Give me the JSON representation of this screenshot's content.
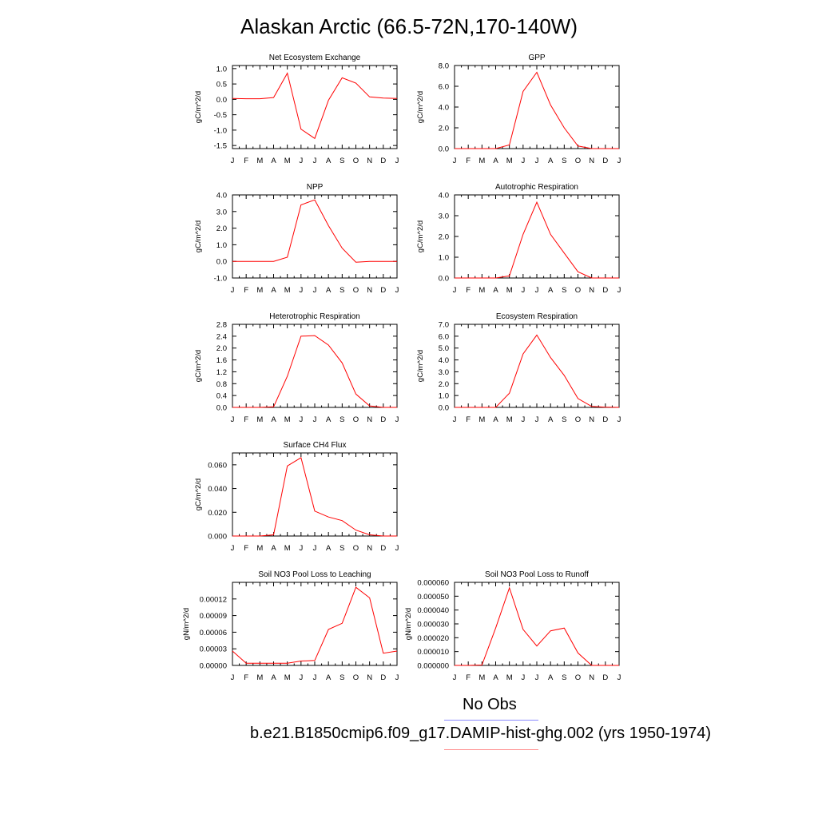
{
  "title": "Alaskan Arctic (66.5-72N,170-140W)",
  "legend": {
    "items": [
      {
        "label": "No Obs",
        "color": "#8a8aff"
      },
      {
        "label": "b.e21.B1850cmip6.f09_g17.DAMIP-hist-ghg.002 (yrs 1950-1974)",
        "color": "#ff8a8a"
      }
    ]
  },
  "chart_data": [
    {
      "type": "line",
      "title": "Net Ecosystem Exchange",
      "xlabel": "",
      "ylabel": "gC/m^2/d",
      "categories": [
        "J",
        "F",
        "M",
        "A",
        "M",
        "J",
        "J",
        "A",
        "S",
        "O",
        "N",
        "D",
        "J"
      ],
      "ylim": [
        -1.6,
        1.1
      ],
      "yticks": [
        "1.0",
        "0.5",
        "0.0",
        "-0.5",
        "-1.0",
        "-1.5"
      ],
      "ytick_values": [
        1.0,
        0.5,
        0.0,
        -0.5,
        -1.0,
        -1.5
      ],
      "series": [
        {
          "color": "#ff0000",
          "values": [
            0.03,
            0.02,
            0.02,
            0.06,
            0.85,
            -0.97,
            -1.27,
            -0.03,
            0.7,
            0.53,
            0.08,
            0.04,
            0.03
          ]
        }
      ]
    },
    {
      "type": "line",
      "title": "GPP",
      "xlabel": "",
      "ylabel": "gC/m^2/d",
      "categories": [
        "J",
        "F",
        "M",
        "A",
        "M",
        "J",
        "J",
        "A",
        "S",
        "O",
        "N",
        "D",
        "J"
      ],
      "ylim": [
        0,
        8
      ],
      "yticks": [
        "8.0",
        "6.0",
        "4.0",
        "2.0",
        "0.0"
      ],
      "ytick_values": [
        8,
        6,
        4,
        2,
        0
      ],
      "series": [
        {
          "color": "#ff0000",
          "values": [
            0,
            0,
            0,
            0,
            0.35,
            5.5,
            7.35,
            4.2,
            2.0,
            0.25,
            0,
            0,
            0
          ]
        }
      ]
    },
    {
      "type": "line",
      "title": "NPP",
      "xlabel": "",
      "ylabel": "gC/m^2/d",
      "categories": [
        "J",
        "F",
        "M",
        "A",
        "M",
        "J",
        "J",
        "A",
        "S",
        "O",
        "N",
        "D",
        "J"
      ],
      "ylim": [
        -1,
        4
      ],
      "yticks": [
        "4.0",
        "3.0",
        "2.0",
        "1.0",
        "0.0",
        "-1.0"
      ],
      "ytick_values": [
        4,
        3,
        2,
        1,
        0,
        -1
      ],
      "series": [
        {
          "color": "#ff0000",
          "values": [
            0,
            0,
            0,
            0,
            0.25,
            3.4,
            3.7,
            2.15,
            0.8,
            -0.05,
            0,
            0,
            0
          ]
        }
      ]
    },
    {
      "type": "line",
      "title": "Autotrophic Respiration",
      "xlabel": "",
      "ylabel": "gC/m^2/d",
      "categories": [
        "J",
        "F",
        "M",
        "A",
        "M",
        "J",
        "J",
        "A",
        "S",
        "O",
        "N",
        "D",
        "J"
      ],
      "ylim": [
        0,
        4
      ],
      "yticks": [
        "4.0",
        "3.0",
        "2.0",
        "1.0",
        "0.0"
      ],
      "ytick_values": [
        4,
        3,
        2,
        1,
        0
      ],
      "series": [
        {
          "color": "#ff0000",
          "values": [
            0,
            0,
            0,
            0,
            0.1,
            2.1,
            3.65,
            2.1,
            1.2,
            0.3,
            0,
            0,
            0
          ]
        }
      ]
    },
    {
      "type": "line",
      "title": "Heterotrophic Respiration",
      "xlabel": "",
      "ylabel": "gC/m^2/d",
      "categories": [
        "J",
        "F",
        "M",
        "A",
        "M",
        "J",
        "J",
        "A",
        "S",
        "O",
        "N",
        "D",
        "J"
      ],
      "ylim": [
        0,
        2.8
      ],
      "yticks": [
        "2.8",
        "2.4",
        "2.0",
        "1.6",
        "1.2",
        "0.8",
        "0.4",
        "0.0"
      ],
      "ytick_values": [
        2.8,
        2.4,
        2.0,
        1.6,
        1.2,
        0.8,
        0.4,
        0.0
      ],
      "series": [
        {
          "color": "#ff0000",
          "values": [
            0,
            0,
            0,
            0.02,
            1.05,
            2.4,
            2.42,
            2.1,
            1.5,
            0.45,
            0.05,
            0,
            0
          ]
        }
      ]
    },
    {
      "type": "line",
      "title": "Ecosystem Respiration",
      "xlabel": "",
      "ylabel": "gC/m^2/d",
      "categories": [
        "J",
        "F",
        "M",
        "A",
        "M",
        "J",
        "J",
        "A",
        "S",
        "O",
        "N",
        "D",
        "J"
      ],
      "ylim": [
        0,
        7
      ],
      "yticks": [
        "7.0",
        "6.0",
        "5.0",
        "4.0",
        "3.0",
        "2.0",
        "1.0",
        "0.0"
      ],
      "ytick_values": [
        7,
        6,
        5,
        4,
        3,
        2,
        1,
        0
      ],
      "series": [
        {
          "color": "#ff0000",
          "values": [
            0,
            0,
            0,
            0,
            1.2,
            4.5,
            6.1,
            4.2,
            2.7,
            0.75,
            0.08,
            0.02,
            0
          ]
        }
      ]
    },
    {
      "type": "line",
      "title": "Surface CH4 Flux",
      "xlabel": "",
      "ylabel": "gC/m^2/d",
      "categories": [
        "J",
        "F",
        "M",
        "A",
        "M",
        "J",
        "J",
        "A",
        "S",
        "O",
        "N",
        "D",
        "J"
      ],
      "ylim": [
        0,
        0.07
      ],
      "yticks": [
        "0.060",
        "0.040",
        "0.020",
        "0.000"
      ],
      "ytick_values": [
        0.06,
        0.04,
        0.02,
        0.0
      ],
      "series": [
        {
          "color": "#ff0000",
          "values": [
            0,
            0,
            0,
            0.001,
            0.059,
            0.066,
            0.021,
            0.016,
            0.013,
            0.005,
            0.001,
            0,
            0
          ]
        }
      ]
    },
    {
      "type": "line",
      "title": "Soil NO3 Pool Loss to Leaching",
      "xlabel": "",
      "ylabel": "gN/m^2/d",
      "categories": [
        "J",
        "F",
        "M",
        "A",
        "M",
        "J",
        "J",
        "A",
        "S",
        "O",
        "N",
        "D",
        "J"
      ],
      "ylim": [
        0,
        0.00015
      ],
      "yticks": [
        "0.00012",
        "0.00009",
        "0.00006",
        "0.00003",
        "0.00000"
      ],
      "ytick_values": [
        0.00012,
        9e-05,
        6e-05,
        3e-05,
        0.0
      ],
      "series": [
        {
          "color": "#ff0000",
          "values": [
            2.6e-05,
            4e-06,
            4e-06,
            4e-06,
            4e-06,
            8e-06,
            9e-06,
            6.5e-05,
            7.6e-05,
            0.000141,
            0.000122,
            2.2e-05,
            2.6e-05
          ]
        }
      ]
    },
    {
      "type": "line",
      "title": "Soil NO3 Pool Loss to Runoff",
      "xlabel": "",
      "ylabel": "gN/m^2/d",
      "categories": [
        "J",
        "F",
        "M",
        "A",
        "M",
        "J",
        "J",
        "A",
        "S",
        "O",
        "N",
        "D",
        "J"
      ],
      "ylim": [
        0,
        6e-05
      ],
      "yticks": [
        "0.000060",
        "0.000050",
        "0.000040",
        "0.000030",
        "0.000020",
        "0.000010",
        "0.000000"
      ],
      "ytick_values": [
        6e-05,
        5e-05,
        4e-05,
        3e-05,
        2e-05,
        1e-05,
        0.0
      ],
      "series": [
        {
          "color": "#ff0000",
          "values": [
            0,
            0,
            3e-07,
            2.7e-05,
            5.6e-05,
            2.6e-05,
            1.4e-05,
            2.5e-05,
            2.7e-05,
            9e-06,
            0,
            0,
            0
          ]
        }
      ]
    }
  ]
}
